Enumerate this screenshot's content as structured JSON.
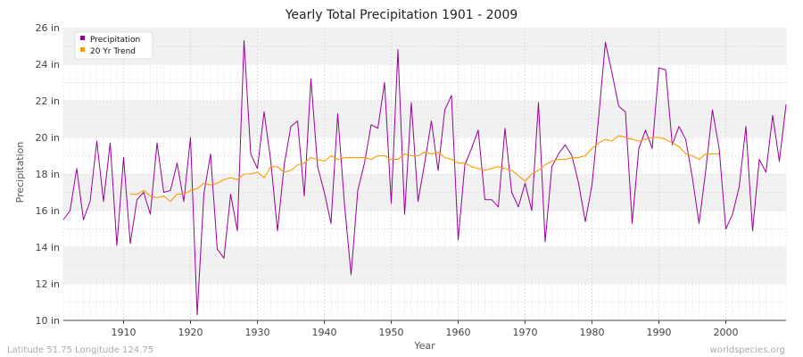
{
  "chart_data": {
    "type": "line",
    "title": "Yearly Total Precipitation 1901 - 2009",
    "xlabel": "Year",
    "ylabel": "Precipitation",
    "xlim": [
      1901,
      2009
    ],
    "ylim": [
      10,
      26
    ],
    "x_ticks": [
      1910,
      1920,
      1930,
      1940,
      1950,
      1960,
      1970,
      1980,
      1990,
      2000
    ],
    "y_ticks": [
      {
        "value": 10,
        "label": "10 in"
      },
      {
        "value": 12,
        "label": "12 in"
      },
      {
        "value": 14,
        "label": "14 in"
      },
      {
        "value": 16,
        "label": "16 in"
      },
      {
        "value": 18,
        "label": "18 in"
      },
      {
        "value": 20,
        "label": "20 in"
      },
      {
        "value": 22,
        "label": "22 in"
      },
      {
        "value": 24,
        "label": "24 in"
      },
      {
        "value": 26,
        "label": "26 in"
      }
    ],
    "grid": true,
    "legend_position": "top-left",
    "series": [
      {
        "name": "Precipitation",
        "color": "#990099",
        "x_start": 1901,
        "values": [
          15.5,
          16,
          18.3,
          15.5,
          16.5,
          19.8,
          16.5,
          19.7,
          14.1,
          18.9,
          14.2,
          16.6,
          17,
          15.8,
          19.7,
          17,
          17.1,
          18.6,
          16.5,
          20,
          10.3,
          16.9,
          19.1,
          13.9,
          13.4,
          16.9,
          14.9,
          25.3,
          19.1,
          18.3,
          21.4,
          18.7,
          14.9,
          18.5,
          20.6,
          20.9,
          16.8,
          23.2,
          18.4,
          17,
          15.3,
          21.3,
          16.4,
          12.5,
          17.1,
          18.6,
          20.7,
          20.5,
          23,
          16.4,
          24.8,
          15.8,
          21.9,
          16.5,
          18.6,
          20.9,
          18.2,
          21.5,
          22.3,
          14.4,
          18.5,
          19.4,
          20.4,
          16.6,
          16.6,
          16.2,
          20.5,
          17,
          16.2,
          17.5,
          16,
          21.9,
          14.3,
          18.4,
          19.1,
          19.6,
          19,
          17.5,
          15.4,
          17.4,
          21.1,
          25.2,
          23.5,
          21.7,
          21.4,
          15.3,
          19.4,
          20.4,
          19.4,
          23.8,
          23.7,
          19.6,
          20.6,
          19.9,
          17.8,
          15.3,
          18.2,
          21.5,
          19.4,
          15,
          15.8,
          17.3,
          20.6,
          14.9,
          18.8,
          18.1,
          21.2,
          18.7,
          21.8
        ]
      },
      {
        "name": "20 Yr Trend",
        "color": "#FF9900",
        "x_start": 1911,
        "values": [
          16.9,
          16.9,
          17.1,
          16.8,
          16.7,
          16.8,
          16.5,
          16.9,
          16.9,
          17.1,
          17.2,
          17.5,
          17.4,
          17.5,
          17.7,
          17.8,
          17.7,
          18,
          18,
          18.1,
          17.8,
          18.4,
          18.4,
          18.1,
          18.2,
          18.5,
          18.6,
          18.9,
          18.8,
          18.7,
          19,
          18.8,
          18.9,
          18.9,
          18.9,
          18.9,
          18.8,
          19,
          19,
          18.8,
          18.8,
          19.1,
          19,
          19,
          19.2,
          19.1,
          19.2,
          18.9,
          18.8,
          18.6,
          18.6,
          18.4,
          18.3,
          18.2,
          18.3,
          18.4,
          18.3,
          18.2,
          17.9,
          17.6,
          18,
          18.2,
          18.5,
          18.7,
          18.8,
          18.8,
          18.9,
          18.9,
          19,
          19.4,
          19.7,
          19.9,
          19.8,
          20.1,
          20,
          19.9,
          19.8,
          19.9,
          20,
          20,
          19.9,
          19.7,
          19.5,
          19.1,
          19,
          18.8,
          19.1,
          19.1,
          19.1
        ]
      }
    ]
  },
  "footer": {
    "left": "Latitude 51.75 Longitude 124.75",
    "right": "worldspecies.org"
  }
}
